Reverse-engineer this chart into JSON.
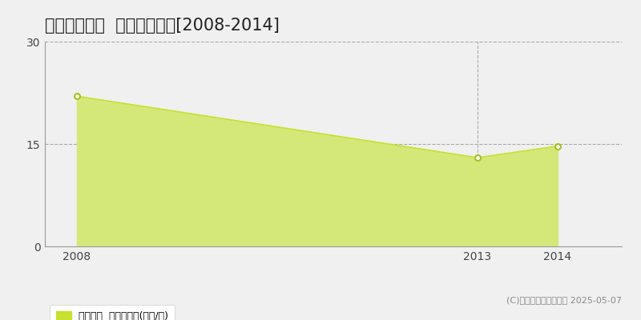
{
  "title": "天童市東長岡  土地価格推移[2008-2014]",
  "years": [
    2008,
    2013,
    2014
  ],
  "values": [
    22.0,
    13.0,
    14.7
  ],
  "line_color": "#c8e030",
  "fill_color": "#d4e87a",
  "fill_alpha": 1.0,
  "marker_color": "#ffffff",
  "marker_edge_color": "#aabf20",
  "ylim": [
    0,
    30
  ],
  "yticks": [
    0,
    15,
    30
  ],
  "xlim_left": 2007.6,
  "xlim_right": 2014.8,
  "xticks": [
    2008,
    2013,
    2014
  ],
  "grid_color": "#aaaaaa",
  "grid_style": "--",
  "bg_color": "#f0f0f0",
  "plot_bg_color": "#f0f0f0",
  "legend_label": "土地価格  平均坊単価(万円/坊)",
  "legend_color": "#c8e030",
  "copyright_text": "(C)土地価格ドットコム 2025-05-07",
  "title_fontsize": 15,
  "tick_fontsize": 10,
  "legend_fontsize": 9,
  "copyright_fontsize": 8
}
